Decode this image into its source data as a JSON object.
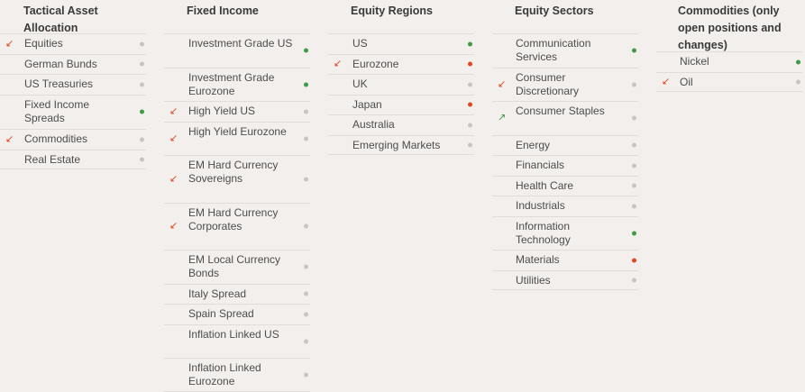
{
  "colors": {
    "neutral": "#c9c4bf",
    "positive": "#3f9a45",
    "negative": "#e0461f",
    "down_arrow": "#e0461f",
    "up_arrow": "#3f9a45"
  },
  "columns": [
    {
      "id": "taa",
      "title": "Tactical Asset Allocation",
      "items": [
        {
          "label": "Equities",
          "arrow": "down",
          "status": "neutral"
        },
        {
          "label": "German Bunds",
          "arrow": "",
          "status": "neutral"
        },
        {
          "label": "US Treasuries",
          "arrow": "",
          "status": "neutral"
        },
        {
          "label": "Fixed Income Spreads",
          "arrow": "",
          "status": "positive"
        },
        {
          "label": "Commodities",
          "arrow": "down",
          "status": "neutral"
        },
        {
          "label": "Real Estate",
          "arrow": "",
          "status": "neutral"
        }
      ]
    },
    {
      "id": "fixed-income",
      "title": "Fixed Income",
      "items": [
        {
          "label": "Investment Grade US",
          "arrow": "",
          "status": "positive"
        },
        {
          "label": "Investment Grade Eurozone",
          "arrow": "",
          "status": "positive"
        },
        {
          "label": "High Yield US",
          "arrow": "down",
          "status": "neutral"
        },
        {
          "label": "High Yield Eurozone",
          "arrow": "down",
          "status": "neutral"
        },
        {
          "label": "EM Hard Currency Sovereigns",
          "arrow": "down",
          "status": "neutral"
        },
        {
          "label": "EM Hard Currency Corporates",
          "arrow": "down",
          "status": "neutral"
        },
        {
          "label": "EM Local Currency Bonds",
          "arrow": "",
          "status": "neutral"
        },
        {
          "label": "Italy Spread",
          "arrow": "",
          "status": "neutral"
        },
        {
          "label": "Spain Spread",
          "arrow": "",
          "status": "neutral"
        },
        {
          "label": "Inflation Linked US",
          "arrow": "",
          "status": "neutral"
        },
        {
          "label": "Inflation Linked Eurozone",
          "arrow": "",
          "status": "neutral"
        }
      ]
    },
    {
      "id": "equity-regions",
      "title": "Equity Regions",
      "items": [
        {
          "label": "US",
          "arrow": "",
          "status": "positive"
        },
        {
          "label": "Eurozone",
          "arrow": "down",
          "status": "negative"
        },
        {
          "label": "UK",
          "arrow": "",
          "status": "neutral"
        },
        {
          "label": "Japan",
          "arrow": "",
          "status": "negative"
        },
        {
          "label": "Australia",
          "arrow": "",
          "status": "neutral"
        },
        {
          "label": "Emerging Markets",
          "arrow": "",
          "status": "neutral"
        }
      ]
    },
    {
      "id": "equity-sectors",
      "title": "Equity Sectors",
      "items": [
        {
          "label": "Communication Services",
          "arrow": "",
          "status": "positive"
        },
        {
          "label": "Consumer Discretionary",
          "arrow": "down",
          "status": "neutral"
        },
        {
          "label": "Consumer Staples",
          "arrow": "up",
          "status": "neutral"
        },
        {
          "label": "Energy",
          "arrow": "",
          "status": "neutral"
        },
        {
          "label": "Financials",
          "arrow": "",
          "status": "neutral"
        },
        {
          "label": "Health Care",
          "arrow": "",
          "status": "neutral"
        },
        {
          "label": "Industrials",
          "arrow": "",
          "status": "neutral"
        },
        {
          "label": "Information Technology",
          "arrow": "",
          "status": "positive"
        },
        {
          "label": "Materials",
          "arrow": "",
          "status": "negative"
        },
        {
          "label": "Utilities",
          "arrow": "",
          "status": "neutral"
        }
      ]
    },
    {
      "id": "commodities",
      "title": "Commodities (only open positions and changes)",
      "items": [
        {
          "label": "Nickel",
          "arrow": "",
          "status": "positive"
        },
        {
          "label": "Oil",
          "arrow": "down",
          "status": "neutral"
        }
      ]
    }
  ]
}
